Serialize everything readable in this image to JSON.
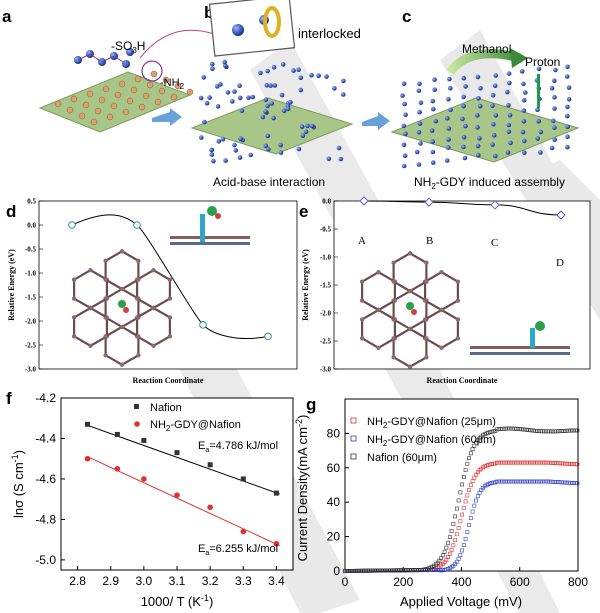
{
  "panels": {
    "a": "a",
    "b": "b",
    "c": "c",
    "d": "d",
    "e": "e",
    "f": "f",
    "g": "g"
  },
  "schematic": {
    "so3h_label": "-SO3H",
    "nh2_label": "-NH2",
    "interlocked_label": "interlocked",
    "acid_base_label": "Acid-base interaction",
    "assembly_label": "NH2-GDY induced assembly",
    "methanol_label": "Methanol",
    "proton_label": "Proton"
  },
  "colors": {
    "sheet": "#a9c689",
    "sphere": "#3f63c8",
    "black_series": "#333333",
    "red_series": "#e03030",
    "blue_series": "#3040c8",
    "marker_teal": "#2d8f86",
    "marker_violet": "#6a5acd",
    "watermark": "#d9d9d9"
  },
  "chart_data": [
    {
      "panel": "d",
      "type": "line",
      "xlabel": "Reaction Coordinate",
      "ylabel": "Relative Energy (eV)",
      "ylim": [
        -3.0,
        0.5
      ],
      "yticks": [
        "0.5",
        "0.0",
        "-0.5",
        "-1.0",
        "-1.5",
        "-2.0",
        "-2.5",
        "-3.0"
      ],
      "ytick_values": [
        0.5,
        0.0,
        -0.5,
        -1.0,
        -1.5,
        -2.0,
        -2.5,
        -3.0
      ],
      "points": [
        0,
        0,
        -2.08,
        -2.32
      ],
      "marker": "circle"
    },
    {
      "panel": "e",
      "type": "line",
      "xlabel": "Reaction Coordinate",
      "ylabel": "Relative Energy (eV)",
      "ylim": [
        -3.0,
        0.0
      ],
      "yticks": [
        "0.0",
        "-0.5",
        "-1.0",
        "-1.5",
        "-2.0",
        "-2.5",
        "-3.0"
      ],
      "ytick_values": [
        0.0,
        -0.5,
        -1.0,
        -1.5,
        -2.0,
        -2.5,
        -3.0
      ],
      "categories": [
        "A",
        "B",
        "C",
        "D"
      ],
      "points": [
        0,
        -0.02,
        -0.07,
        -0.25
      ],
      "marker": "diamond"
    },
    {
      "panel": "f",
      "type": "scatter",
      "xlabel": "1000/ T (K-1)",
      "ylabel": "lnσ (S cm-1)",
      "xlim": [
        2.75,
        3.45
      ],
      "ylim": [
        -5.05,
        -4.2
      ],
      "xticks": [
        2.8,
        2.9,
        3.0,
        3.1,
        3.2,
        3.3,
        3.4
      ],
      "xtick_labels": [
        "2.8",
        "2.9",
        "3.0",
        "3.1",
        "3.2",
        "3.3",
        "3.4"
      ],
      "yticks": [
        -4.2,
        -4.4,
        -4.6,
        -4.8,
        -5.0
      ],
      "ytick_labels": [
        "-4.2",
        "-4.4",
        "-4.6",
        "-4.8",
        "-5.0"
      ],
      "series": [
        {
          "name": "Nafion",
          "marker": "square",
          "x": [
            2.83,
            2.92,
            3.0,
            3.1,
            3.2,
            3.3,
            3.4
          ],
          "y": [
            -4.33,
            -4.38,
            -4.41,
            -4.47,
            -4.53,
            -4.6,
            -4.67
          ],
          "fit": [
            [
              2.83,
              -4.335
            ],
            [
              3.41,
              -4.675
            ]
          ]
        },
        {
          "name": "NH2-GDY@Nafion",
          "marker": "circle",
          "x": [
            2.83,
            2.92,
            3.0,
            3.1,
            3.2,
            3.3,
            3.4
          ],
          "y": [
            -4.5,
            -4.55,
            -4.6,
            -4.68,
            -4.74,
            -4.86,
            -4.92
          ],
          "fit": [
            [
              2.83,
              -4.49
            ],
            [
              3.41,
              -4.93
            ]
          ]
        }
      ],
      "annotations": [
        "Ea=4.786 kJ/mol",
        "Ea=6.255 kJ/mol"
      ]
    },
    {
      "panel": "g",
      "type": "line",
      "xlabel": "Applied Voltage (mV)",
      "ylabel": "Current Density(mA cm-2)",
      "xlim": [
        0,
        800
      ],
      "ylim": [
        0,
        100
      ],
      "xticks": [
        0,
        200,
        400,
        600,
        800
      ],
      "yticks": [
        0,
        20,
        40,
        60,
        80
      ],
      "series": [
        {
          "name": "NH2-GDY@Nafion (25μm)",
          "voltage_start": 280,
          "voltage_end": 520,
          "plateau": 63
        },
        {
          "name": "NH2-GDY@Nafion (60μm)",
          "voltage_start": 330,
          "voltage_end": 520,
          "plateau": 52
        },
        {
          "name": "Nafion (60μm)",
          "voltage_start": 260,
          "voltage_end": 520,
          "plateau": 82
        }
      ]
    }
  ],
  "text": {
    "d_xlabel": "Reaction Coordinate",
    "d_ylabel": "Relative Energy (eV)",
    "e_xlabel": "Reaction Coordinate",
    "e_ylabel": "Relative Energy (eV)",
    "e_A": "A",
    "e_B": "B",
    "e_C": "C",
    "e_D": "D",
    "f_xlabel_main": "1000/ T (K",
    "f_xlabel_sup": "-1",
    "f_xlabel_end": ")",
    "f_ylabel_main": "lnσ (S cm",
    "f_ylabel_sup": "-1",
    "f_ylabel_end": ")",
    "f_leg1": "Nafion",
    "f_leg2_a": "NH",
    "f_leg2_sub": "2",
    "f_leg2_b": "-GDY@Nafion",
    "f_ea1_pre": "E",
    "f_ea1_sub": "a",
    "f_ea1_post": "=4.786 kJ/mol",
    "f_ea2_pre": "E",
    "f_ea2_sub": "a",
    "f_ea2_post": "=6.255 kJ/mol",
    "g_xlabel": "Applied Voltage (mV)",
    "g_ylabel_main": "Current Density(mA cm",
    "g_ylabel_sup": "-2",
    "g_ylabel_end": ")",
    "g_leg1_a": "NH",
    "g_leg1_sub": "2",
    "g_leg1_b": "-GDY@Nafion (25μm)",
    "g_leg2_a": "NH",
    "g_leg2_sub": "2",
    "g_leg2_b": "-GDY@Nafion (60μm)",
    "g_leg3": "Nafion (60μm)",
    "so3h": "-SO",
    "so3h_sub": "3",
    "so3h_end": "H",
    "nh2": "-NH",
    "nh2_sub": "2",
    "interlocked": "interlocked",
    "acid_base": "Acid-base interaction",
    "assembly_a": "NH",
    "assembly_sub": "2",
    "assembly_b": "-GDY induced assembly",
    "methanol": "Methanol",
    "proton": "Proton"
  }
}
